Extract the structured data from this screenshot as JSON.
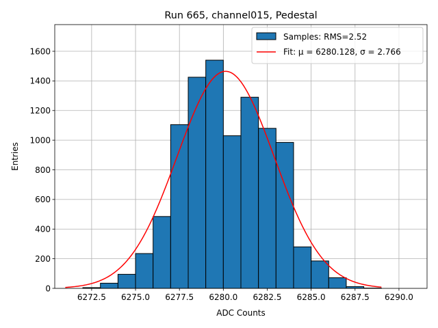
{
  "chart_data": {
    "type": "bar",
    "title": "Run 665, channel015, Pedestal",
    "xlabel": "ADC Counts",
    "ylabel": "Entries",
    "xlim": [
      6270.4,
      6291.6
    ],
    "ylim": [
      0,
      1780
    ],
    "grid": true,
    "legend_placement": "top-right",
    "xticks": [
      6272.5,
      6275.0,
      6277.5,
      6280.0,
      6282.5,
      6285.0,
      6287.5,
      6290.0
    ],
    "xtick_labels": [
      "6272.5",
      "6275.0",
      "6277.5",
      "6280.0",
      "6282.5",
      "6285.0",
      "6287.5",
      "6290.0"
    ],
    "yticks": [
      0,
      200,
      400,
      600,
      800,
      1000,
      1200,
      1400,
      1600
    ],
    "ytick_labels": [
      "0",
      "200",
      "400",
      "600",
      "800",
      "1000",
      "1200",
      "1400",
      "1600"
    ],
    "histogram": {
      "name": "Samples: RMS=2.52",
      "color": "#1f77b4",
      "bin_edges": [
        6272,
        6273,
        6274,
        6275,
        6276,
        6277,
        6278,
        6279,
        6280,
        6281,
        6282,
        6283,
        6284,
        6285,
        6286,
        6287,
        6288,
        6289
      ],
      "counts": [
        5,
        35,
        95,
        235,
        485,
        1105,
        1425,
        1540,
        1030,
        1290,
        1080,
        985,
        280,
        185,
        72,
        12,
        2
      ]
    },
    "fit": {
      "name": "Fit: μ = 6280.128, σ = 2.766",
      "color": "#ff0000",
      "mu": 6280.128,
      "sigma": 2.766,
      "amplitude": 1465,
      "x_range": [
        6271.0,
        6289.0
      ]
    }
  }
}
